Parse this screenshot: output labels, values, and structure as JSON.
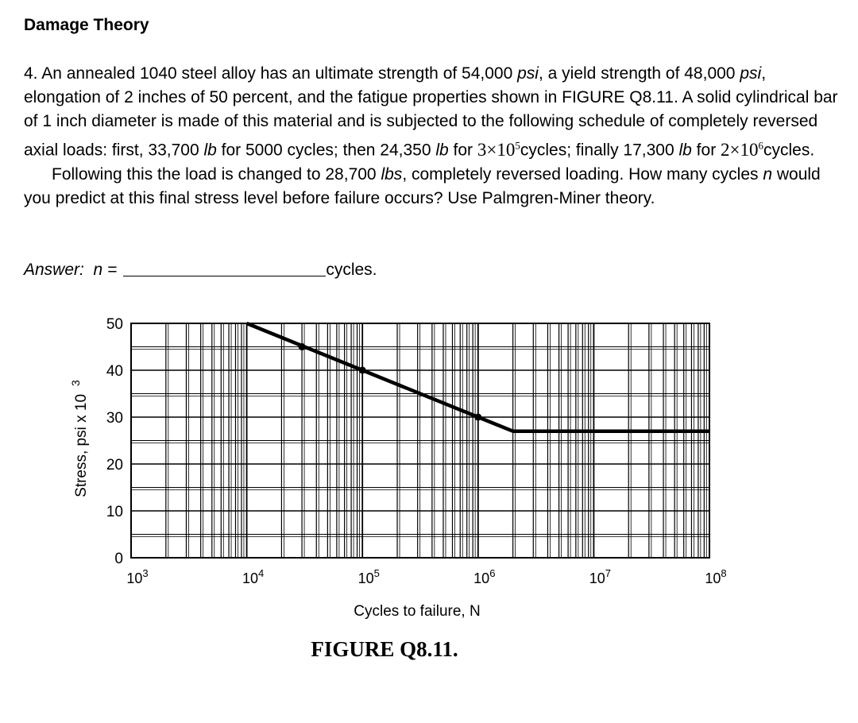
{
  "heading": "Damage Theory",
  "problem": {
    "p1_a": "4. An annealed 1040 steel alloy has an ultimate strength of 54,000 ",
    "psi": "psi",
    "p1_b": ", a yield strength of 48,000 ",
    "p1_c": ", elongation of 2 inches of 50 percent, and the fatigue properties shown in FIGURE Q8.11. A solid cylindrical bar of 1 inch diameter is made of this material and is subjected to the following schedule of completely reversed axial loads: first, 33,700 ",
    "lb": "lb",
    "p1_d": " for 5000 cycles; then 24,350 ",
    "p1_e": " for ",
    "sci1_base": "3×10",
    "sci1_exp": "5",
    "p1_f": "cycles; finally 17,300 ",
    "p1_g": " for ",
    "sci2_base": "2×10",
    "sci2_exp": "6",
    "p1_h": "cycles.",
    "p2_a": "Following this the load is changed to 28,700 ",
    "lbs": "lbs",
    "p2_b": ", completely reversed loading. How many cycles ",
    "n": "n",
    "p2_c": " would you predict at this final stress level before failure occurs? Use Palmgren-Miner theory."
  },
  "answer": {
    "label": "Answer:",
    "var": "n =",
    "unit": "cycles."
  },
  "chart_data": {
    "type": "line",
    "title": "",
    "xlabel": "Cycles to failure, N",
    "ylabel": "Stress, psi x 10",
    "ylabel_exp": "3",
    "x_scale": "log",
    "xlim": [
      1000,
      100000000
    ],
    "ylim": [
      0,
      50
    ],
    "x_tick_bases": [
      "10",
      "10",
      "10",
      "10",
      "10",
      "10"
    ],
    "x_tick_exps": [
      "3",
      "4",
      "5",
      "6",
      "7",
      "8"
    ],
    "y_ticks": [
      "0",
      "10",
      "20",
      "30",
      "40",
      "50"
    ],
    "grid": true,
    "series": [
      {
        "x": [
          10000,
          100000,
          1000000,
          2000000,
          100000000
        ],
        "y": [
          50,
          40,
          30,
          27,
          27
        ]
      }
    ],
    "markers_on_curve": [
      {
        "x": 30000,
        "y": 45
      },
      {
        "x": 100000,
        "y": 40
      },
      {
        "x": 1000000,
        "y": 30
      }
    ]
  },
  "caption": "FIGURE Q8.11."
}
